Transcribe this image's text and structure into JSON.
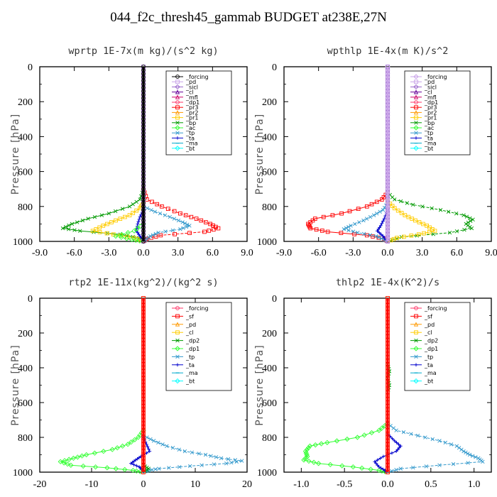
{
  "title": "044_f2c_thresh45_gammab  BUDGET at238E,27N",
  "chart_data": [
    {
      "type": "line",
      "title": "wprtp  1E-7x(m kg)/(s^2 kg)",
      "ylabel": "Pressure [hPa]",
      "xlim": [
        -9,
        9
      ],
      "ylim": [
        1000,
        0
      ],
      "xticks": [
        "-9.0",
        "-6.0",
        "-3.0",
        "0.0",
        "3.0",
        "6.0",
        "9.0"
      ],
      "yticks": [
        "0",
        "200",
        "400",
        "600",
        "800",
        "1000"
      ],
      "legend_position": "top-right",
      "legend": [
        {
          "name": "_forcing",
          "color": "#000000",
          "marker": "circle"
        },
        {
          "name": "_pd",
          "color": "#c8a2e8",
          "marker": "square"
        },
        {
          "name": "_sicl",
          "color": "#9966cc",
          "marker": "diamond"
        },
        {
          "name": "_cl",
          "color": "#660099",
          "marker": "tri"
        },
        {
          "name": "_mfl",
          "color": "#cc0066",
          "marker": "tri"
        },
        {
          "name": "_dp1",
          "color": "#ff3366",
          "marker": "circle"
        },
        {
          "name": "_pr3",
          "color": "#ff0000",
          "marker": "square"
        },
        {
          "name": "_pr2",
          "color": "#ff9900",
          "marker": "tri"
        },
        {
          "name": "_pr1",
          "color": "#ffcc00",
          "marker": "square"
        },
        {
          "name": "_bp",
          "color": "#009900",
          "marker": "x"
        },
        {
          "name": "_ac",
          "color": "#33ff33",
          "marker": "diamond"
        },
        {
          "name": "_tp",
          "color": "#3399cc",
          "marker": "x"
        },
        {
          "name": "_ta",
          "color": "#0000cc",
          "marker": "plus"
        },
        {
          "name": "_ma",
          "color": "#00aacc",
          "marker": "dash"
        },
        {
          "name": "_bt",
          "color": "#00ffff",
          "marker": "diamond"
        }
      ],
      "series": [
        {
          "color": "#009900",
          "marker": "x",
          "p": [
            700,
            760,
            800,
            840,
            870,
            900,
            925,
            940,
            960,
            980,
            1000
          ],
          "v": [
            0,
            -0.3,
            -1.2,
            -3,
            -4.8,
            -6.2,
            -7,
            -5.5,
            -2,
            -0.4,
            0
          ]
        },
        {
          "color": "#ff0000",
          "marker": "square",
          "p": [
            700,
            760,
            800,
            840,
            870,
            900,
            925,
            945,
            965,
            985,
            1000
          ],
          "v": [
            0,
            0.3,
            1.6,
            3.2,
            4.6,
            5.8,
            6.5,
            5.3,
            1.5,
            0.3,
            0
          ]
        },
        {
          "color": "#ffcc00",
          "marker": "square",
          "p": [
            780,
            810,
            850,
            880,
            910,
            940,
            960,
            980,
            1000
          ],
          "v": [
            0,
            -0.3,
            -1.2,
            -2.4,
            -3.5,
            -4.4,
            -2.6,
            -0.8,
            0
          ]
        },
        {
          "color": "#3399cc",
          "marker": "x",
          "p": [
            800,
            830,
            860,
            890,
            910,
            930,
            950,
            970,
            990,
            1000
          ],
          "v": [
            0,
            1,
            2.3,
            3.4,
            4,
            3.2,
            1.3,
            0.6,
            0.2,
            0
          ]
        },
        {
          "color": "#0000cc",
          "marker": "plus",
          "p": [
            820,
            860,
            900,
            940,
            970,
            1000
          ],
          "v": [
            0,
            -0.3,
            -0.5,
            -0.6,
            -0.3,
            0
          ]
        },
        {
          "color": "#33ff33",
          "marker": "diamond",
          "p": [
            900,
            940,
            970,
            990,
            1000
          ],
          "v": [
            0,
            -0.8,
            -2.4,
            -1,
            0
          ]
        },
        {
          "color": "#9966cc",
          "marker": "square",
          "p": [
            0,
            1000
          ],
          "v": [
            0,
            0
          ]
        },
        {
          "color": "#000000",
          "marker": "circle",
          "p": [
            0,
            1000
          ],
          "v": [
            0,
            0
          ]
        }
      ]
    },
    {
      "type": "line",
      "title": "wpthlp  1E-4x(m K)/s^2",
      "ylabel": "Pressure [hPa]",
      "xlim": [
        -9,
        9
      ],
      "ylim": [
        1000,
        0
      ],
      "xticks": [
        "-9.0",
        "-6.0",
        "-3.0",
        "0.0",
        "3.0",
        "6.0",
        "9.0"
      ],
      "yticks": [
        "0",
        "200",
        "400",
        "600",
        "800",
        "1000"
      ],
      "legend_position": "top-right",
      "legend": [
        {
          "name": "_forcing",
          "color": "#c8a2e8",
          "marker": "diamond"
        },
        {
          "name": "_pd",
          "color": "#c8a2e8",
          "marker": "square"
        },
        {
          "name": "_sicl",
          "color": "#9966cc",
          "marker": "diamond"
        },
        {
          "name": "_cl",
          "color": "#660099",
          "marker": "tri"
        },
        {
          "name": "_mfl",
          "color": "#cc0066",
          "marker": "tri"
        },
        {
          "name": "_dp1",
          "color": "#ff3366",
          "marker": "circle"
        },
        {
          "name": "_pr3",
          "color": "#ff0000",
          "marker": "square"
        },
        {
          "name": "_pr2",
          "color": "#ff9900",
          "marker": "tri"
        },
        {
          "name": "_pr1",
          "color": "#ffcc00",
          "marker": "square"
        },
        {
          "name": "_bp",
          "color": "#009900",
          "marker": "x"
        },
        {
          "name": "_ac",
          "color": "#33ff33",
          "marker": "diamond"
        },
        {
          "name": "_tp",
          "color": "#3399cc",
          "marker": "x"
        },
        {
          "name": "_ta",
          "color": "#0000cc",
          "marker": "plus"
        },
        {
          "name": "_ma",
          "color": "#00aacc",
          "marker": "dash"
        },
        {
          "name": "_bt",
          "color": "#00ffff",
          "marker": "diamond"
        }
      ],
      "series": [
        {
          "color": "#ff0000",
          "marker": "square",
          "p": [
            720,
            760,
            800,
            840,
            870,
            900,
            925,
            945,
            965,
            985,
            1000
          ],
          "v": [
            0,
            -0.5,
            -1.8,
            -4,
            -6.3,
            -6.9,
            -6.7,
            -5.2,
            -1.8,
            -0.3,
            0
          ]
        },
        {
          "color": "#009900",
          "marker": "x",
          "p": [
            720,
            760,
            790,
            820,
            850,
            875,
            900,
            925,
            950,
            975,
            1000
          ],
          "v": [
            0,
            0.6,
            2.2,
            4.6,
            6.6,
            7.4,
            6.8,
            7.3,
            5.4,
            1.2,
            0
          ]
        },
        {
          "color": "#ffcc00",
          "marker": "square",
          "p": [
            770,
            810,
            850,
            880,
            910,
            940,
            960,
            980,
            1000
          ],
          "v": [
            0,
            0.6,
            1.5,
            2.4,
            3.4,
            4.1,
            2.7,
            0.8,
            0
          ]
        },
        {
          "color": "#3399cc",
          "marker": "x",
          "p": [
            780,
            820,
            850,
            880,
            910,
            930,
            950,
            970,
            990,
            1000
          ],
          "v": [
            0,
            -0.4,
            -1.2,
            -2.1,
            -3.2,
            -3.8,
            -2.6,
            -1,
            -0.3,
            0
          ]
        },
        {
          "color": "#0000cc",
          "marker": "plus",
          "p": [
            820,
            870,
            910,
            940,
            970,
            1000
          ],
          "v": [
            0,
            -0.3,
            -0.6,
            -0.9,
            -0.4,
            0
          ]
        },
        {
          "color": "#9966cc",
          "marker": "square",
          "p": [
            0,
            1000
          ],
          "v": [
            0,
            0
          ]
        },
        {
          "color": "#c8a2e8",
          "marker": "diamond",
          "p": [
            0,
            1000
          ],
          "v": [
            0,
            0
          ]
        }
      ]
    },
    {
      "type": "line",
      "title": "rtp2  1E-11x(kg^2)/(kg^2 s)",
      "ylabel": "Pressure [hPa]",
      "xlim": [
        -20,
        20
      ],
      "ylim": [
        1000,
        0
      ],
      "xticks": [
        "-20",
        "-10",
        "0",
        "10",
        "20"
      ],
      "yticks": [
        "0",
        "200",
        "400",
        "600",
        "800",
        "1000"
      ],
      "legend_position": "top-right",
      "legend": [
        {
          "name": "_forcing",
          "color": "#ff3366",
          "marker": "circle"
        },
        {
          "name": "_sf",
          "color": "#ff0000",
          "marker": "square"
        },
        {
          "name": "_pd",
          "color": "#ff9900",
          "marker": "tri"
        },
        {
          "name": "_cl",
          "color": "#ffcc00",
          "marker": "square"
        },
        {
          "name": "_dp2",
          "color": "#009900",
          "marker": "x"
        },
        {
          "name": "_dp1",
          "color": "#33ff33",
          "marker": "diamond"
        },
        {
          "name": "_tp",
          "color": "#3399cc",
          "marker": "x"
        },
        {
          "name": "_ta",
          "color": "#0000cc",
          "marker": "plus"
        },
        {
          "name": "_ma",
          "color": "#00aacc",
          "marker": "dash"
        },
        {
          "name": "_bt",
          "color": "#00ffff",
          "marker": "diamond"
        }
      ],
      "series": [
        {
          "color": "#33ff33",
          "marker": "diamond",
          "p": [
            760,
            800,
            840,
            870,
            900,
            920,
            940,
            960,
            975,
            990,
            1000
          ],
          "v": [
            0,
            -1,
            -3,
            -6,
            -11,
            -13.5,
            -16,
            -14,
            -7,
            -2,
            0
          ]
        },
        {
          "color": "#3399cc",
          "marker": "x",
          "p": [
            790,
            820,
            850,
            880,
            900,
            920,
            935,
            950,
            965,
            980,
            990,
            1000
          ],
          "v": [
            0,
            2,
            4.5,
            8,
            12,
            15,
            19,
            16,
            9,
            3,
            1,
            0
          ]
        },
        {
          "color": "#0000cc",
          "marker": "plus",
          "p": [
            800,
            840,
            880,
            910,
            930,
            950,
            970,
            985,
            1000
          ],
          "v": [
            0,
            0.6,
            1.2,
            -0.5,
            -1.5,
            -2.4,
            -0.8,
            -0.2,
            0
          ]
        },
        {
          "color": "#009900",
          "marker": "x",
          "p": [
            960,
            980,
            1000
          ],
          "v": [
            0,
            1,
            0
          ]
        },
        {
          "color": "#ffcc00",
          "marker": "square",
          "p": [
            0,
            1000
          ],
          "v": [
            0,
            0
          ]
        },
        {
          "color": "#ff0000",
          "marker": "square",
          "p": [
            0,
            1000
          ],
          "v": [
            0,
            0
          ]
        }
      ]
    },
    {
      "type": "line",
      "title": "thlp2  1E-4x(K^2)/s",
      "ylabel": "Pressure [hPa]",
      "xlim": [
        -1.2,
        1.2
      ],
      "ylim": [
        1000,
        0
      ],
      "xticks": [
        "-1.0",
        "-0.5",
        "0.0",
        "0.5",
        "1.0"
      ],
      "yticks": [
        "0",
        "200",
        "400",
        "600",
        "800",
        "1000"
      ],
      "legend_position": "top-right",
      "legend": [
        {
          "name": "_forcing",
          "color": "#ff3366",
          "marker": "circle"
        },
        {
          "name": "_sf",
          "color": "#ff0000",
          "marker": "square"
        },
        {
          "name": "_pd",
          "color": "#ff9900",
          "marker": "tri"
        },
        {
          "name": "_cl",
          "color": "#ffcc00",
          "marker": "square"
        },
        {
          "name": "_dp2",
          "color": "#009900",
          "marker": "x"
        },
        {
          "name": "_dp1",
          "color": "#33ff33",
          "marker": "diamond"
        },
        {
          "name": "_tp",
          "color": "#3399cc",
          "marker": "x"
        },
        {
          "name": "_ta",
          "color": "#0000cc",
          "marker": "plus"
        },
        {
          "name": "_ma",
          "color": "#00aacc",
          "marker": "dash"
        },
        {
          "name": "_bt",
          "color": "#00ffff",
          "marker": "diamond"
        }
      ],
      "series": [
        {
          "color": "#33ff33",
          "marker": "diamond",
          "p": [
            720,
            760,
            800,
            830,
            850,
            880,
            910,
            930,
            950,
            970,
            990,
            1000
          ],
          "v": [
            0,
            -0.1,
            -0.35,
            -0.7,
            -0.9,
            -0.95,
            -0.93,
            -0.97,
            -0.8,
            -0.4,
            -0.1,
            0
          ]
        },
        {
          "color": "#3399cc",
          "marker": "x",
          "p": [
            720,
            760,
            790,
            820,
            850,
            880,
            900,
            920,
            940,
            960,
            980,
            1000
          ],
          "v": [
            0,
            0.1,
            0.35,
            0.6,
            0.8,
            0.88,
            0.95,
            1.05,
            1.1,
            0.6,
            0.15,
            0
          ]
        },
        {
          "color": "#0000cc",
          "marker": "plus",
          "p": [
            780,
            820,
            850,
            880,
            910,
            940,
            970,
            990,
            1000
          ],
          "v": [
            0,
            0.08,
            0.15,
            0.1,
            -0.05,
            -0.15,
            -0.1,
            -0.03,
            0
          ]
        },
        {
          "color": "#009900",
          "marker": "x",
          "p": [
            380,
            420,
            460,
            500,
            540
          ],
          "v": [
            0,
            0.02,
            0,
            0.02,
            0
          ]
        },
        {
          "color": "#ffcc00",
          "marker": "square",
          "p": [
            0,
            1000
          ],
          "v": [
            0,
            0
          ]
        },
        {
          "color": "#ff0000",
          "marker": "square",
          "p": [
            0,
            1000
          ],
          "v": [
            0,
            0
          ]
        }
      ]
    }
  ]
}
